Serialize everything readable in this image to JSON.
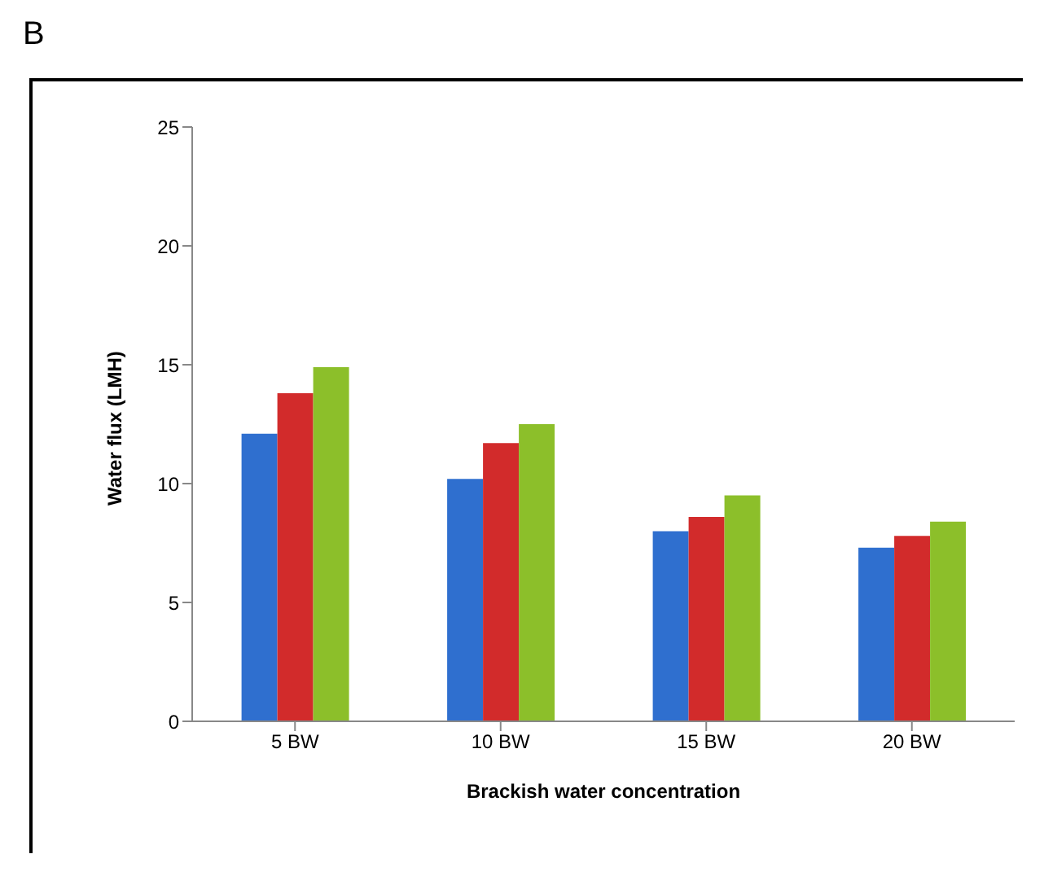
{
  "chart_data": {
    "type": "bar",
    "title": "B",
    "xlabel": "Brackish  water concentration",
    "ylabel": "Water flux (LMH)",
    "categories": [
      "5 BW",
      "10 BW",
      "15 BW",
      "20 BW"
    ],
    "series": [
      {
        "color": "#2f6fcf",
        "values": [
          12.1,
          10.2,
          8.0,
          7.3
        ]
      },
      {
        "color": "#d22b2b",
        "values": [
          13.8,
          11.7,
          8.6,
          7.8
        ]
      },
      {
        "color": "#8cbf2a",
        "values": [
          14.9,
          12.5,
          9.5,
          8.4
        ]
      }
    ],
    "ylim": [
      0,
      25
    ],
    "yticks": [
      0,
      5,
      10,
      15,
      20,
      25
    ],
    "grid": false,
    "legend": false
  }
}
